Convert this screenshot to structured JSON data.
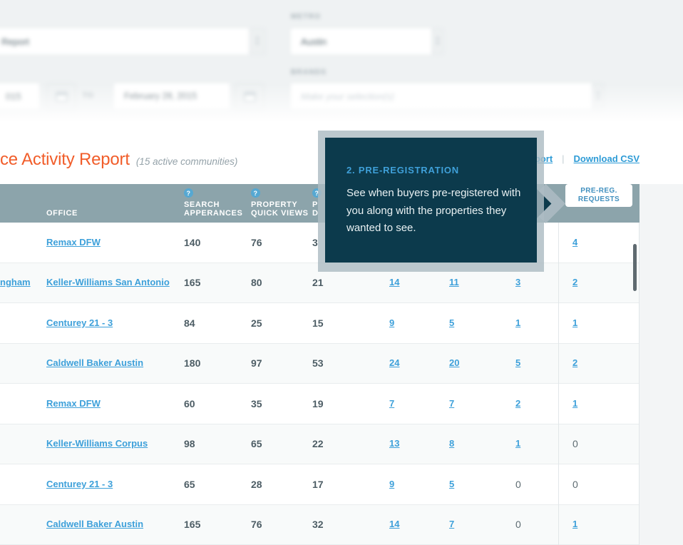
{
  "colors": {
    "accent_orange": "#f15d2a",
    "link_blue": "#3da0da",
    "table_header_bg": "#8ca4ab",
    "tooltip_bg": "#0c3a4c",
    "tooltip_title_blue": "#3fa0d9",
    "top_section_bg": "#eff2f3"
  },
  "filters": {
    "report_select_value": "Report",
    "metro_label": "METRO",
    "metro_value": "Austin",
    "date_from_value": "015",
    "to_label": "TO",
    "date_to_value": "February 28, 2015",
    "brands_label": "BRANDS",
    "brands_placeholder": "Make your selection(s)",
    "spinner_up_glyph": "▲",
    "spinner_down_glyph": "▼"
  },
  "report_header": {
    "title": "ce Activity Report",
    "subtitle": "(15 active communities)",
    "link_print": "port",
    "link_separator": "|",
    "link_download": "Download CSV"
  },
  "tooltip": {
    "step_title": "2. PRE-REGISTRATION",
    "body": "See when buyers pre-registered with you along with the properties they wanted to see."
  },
  "table": {
    "question_icon_glyph": "?",
    "columns": {
      "office": "OFFICE",
      "search_line1": "SEARCH",
      "search_line2": "APPERANCES",
      "quick_line1": "PROPERTY",
      "quick_line2": "QUICK VIEWS",
      "detail_line1": "P",
      "detail_line2": "D",
      "prereg_line1": "PRE-REG.",
      "prereg_line2": "REQUESTS"
    },
    "rows": [
      {
        "agent": "",
        "office": "Remax DFW",
        "values": [
          "140",
          "76",
          "3",
          "",
          "",
          "",
          "4"
        ]
      },
      {
        "agent": "ngham",
        "office": "Keller-Williams San Antonio",
        "values": [
          "165",
          "80",
          "21",
          "14",
          "11",
          "3",
          "2"
        ]
      },
      {
        "agent": "",
        "office": "Centurey 21 - 3",
        "values": [
          "84",
          "25",
          "15",
          "9",
          "5",
          "1",
          "1"
        ]
      },
      {
        "agent": "",
        "office": "Caldwell Baker Austin",
        "values": [
          "180",
          "97",
          "53",
          "24",
          "20",
          "5",
          "2"
        ]
      },
      {
        "agent": "",
        "office": "Remax DFW",
        "values": [
          "60",
          "35",
          "19",
          "7",
          "7",
          "2",
          "1"
        ]
      },
      {
        "agent": "",
        "office": "Keller-Williams Corpus",
        "values": [
          "98",
          "65",
          "22",
          "13",
          "8",
          "1",
          "0"
        ]
      },
      {
        "agent": "",
        "office": "Centurey 21 - 3",
        "values": [
          "65",
          "28",
          "17",
          "9",
          "5",
          "0",
          "0"
        ]
      },
      {
        "agent": "",
        "office": "Caldwell Baker Austin",
        "values": [
          "165",
          "76",
          "32",
          "14",
          "7",
          "0",
          "1"
        ]
      }
    ]
  }
}
